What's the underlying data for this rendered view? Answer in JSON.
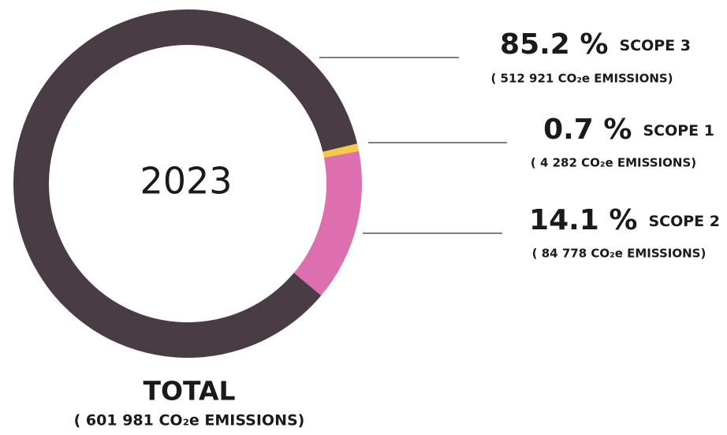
{
  "chart_data": {
    "type": "pie",
    "donut": true,
    "center_label": "2023",
    "categories": [
      "SCOPE 3",
      "SCOPE 1",
      "SCOPE 2"
    ],
    "values": [
      85.2,
      0.7,
      14.1
    ],
    "value_labels": [
      "85.2 %",
      "0.7 %",
      "14.1 %"
    ],
    "notes": [
      "( 512 921 CO₂e EMISSIONS)",
      "( 4 282 CO₂e EMISSIONS)",
      "( 84 778 CO₂e EMISSIONS)"
    ],
    "colors": [
      "#4a3c45",
      "#f7c948",
      "#de6fae"
    ],
    "total_label": "TOTAL",
    "total_note": "( 601 981 CO₂e EMISSIONS)"
  }
}
